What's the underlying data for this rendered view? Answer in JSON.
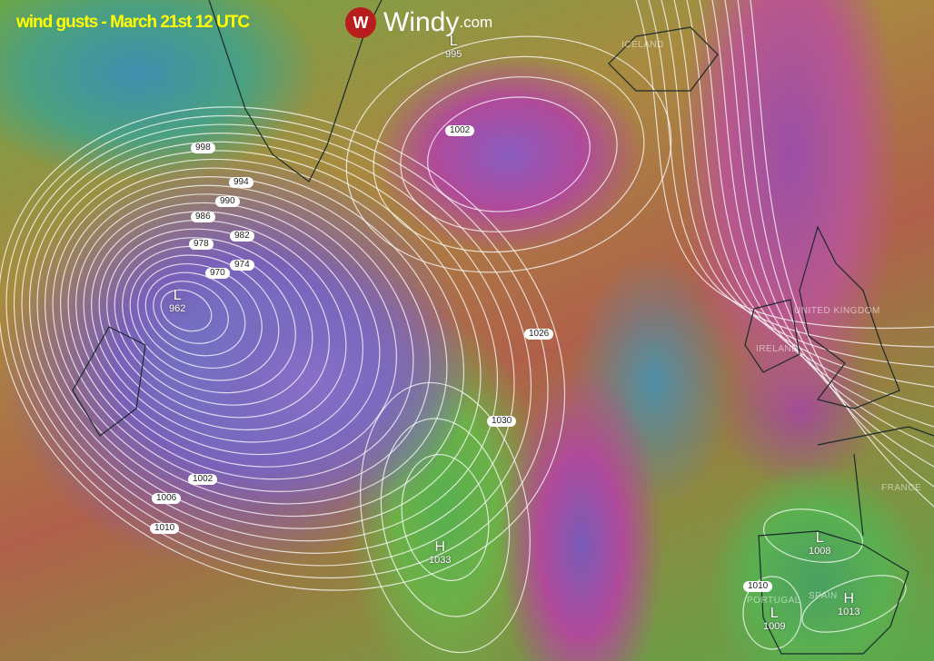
{
  "title": "wind gusts - March 21st 12 UTC",
  "logo": {
    "name": "Windy",
    "domain": ".com",
    "icon": "windy-logo-icon",
    "color": "#b81c1c"
  },
  "isobar_labels": [
    "998",
    "994",
    "990",
    "986",
    "982",
    "978",
    "974",
    "970",
    "1002",
    "1026",
    "1030",
    "1002",
    "1006",
    "1010",
    "1010"
  ],
  "pressure_systems": [
    {
      "type": "L",
      "value": "962"
    },
    {
      "type": "L",
      "value": "995"
    },
    {
      "type": "H",
      "value": "1033"
    },
    {
      "type": "L",
      "value": "1008"
    },
    {
      "type": "L",
      "value": "1009"
    },
    {
      "type": "H",
      "value": "1013"
    }
  ],
  "countries": [
    "ICELAND",
    "UNITED KINGDOM",
    "IRELAND",
    "FRANCE",
    "SPAIN",
    "PORTUGAL"
  ]
}
